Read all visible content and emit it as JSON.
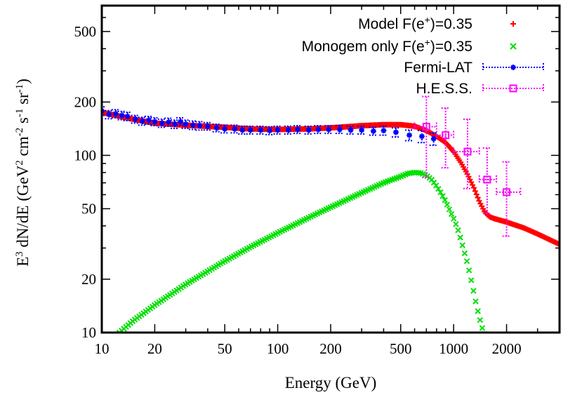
{
  "chart_data": {
    "type": "scatter",
    "title": "",
    "xlabel": "Energy (GeV)",
    "ylabel_parts": {
      "lead": "E",
      "lead_sup": "3",
      "mid": " dN/dE (GeV",
      "sup1": "2",
      "unit2": " cm",
      "sup2": "-2",
      "unit3": " s",
      "sup3": "-1",
      "unit4": " sr",
      "sup4": "-1"
    },
    "xscale": "log",
    "yscale": "log",
    "xlim": [
      10,
      4000
    ],
    "ylim": [
      10,
      700
    ],
    "x_ticks": [
      10,
      20,
      50,
      100,
      200,
      500,
      1000,
      2000
    ],
    "x_tick_labels": [
      "10",
      "20",
      "50",
      "100",
      "200",
      "500",
      "1000",
      "2000"
    ],
    "y_ticks": [
      10,
      20,
      50,
      100,
      200,
      500
    ],
    "y_tick_labels": [
      "10",
      "20",
      "50",
      "100",
      "200",
      "500"
    ],
    "grid": false,
    "legend_position": "top-right",
    "series": [
      {
        "name": "Model F(e+)=0.35",
        "legend_base": "Model F(e",
        "legend_sup": "+",
        "legend_tail": ")=0.35",
        "marker": "plus",
        "color": "#ff0000",
        "curve": [
          [
            10,
            175
          ],
          [
            15,
            160
          ],
          [
            20,
            152
          ],
          [
            30,
            148
          ],
          [
            50,
            144
          ],
          [
            70,
            141
          ],
          [
            100,
            140
          ],
          [
            150,
            141
          ],
          [
            200,
            143
          ],
          [
            300,
            147
          ],
          [
            400,
            149
          ],
          [
            500,
            149
          ],
          [
            600,
            146
          ],
          [
            700,
            138
          ],
          [
            800,
            128
          ],
          [
            900,
            118
          ],
          [
            1000,
            105
          ],
          [
            1100,
            91
          ],
          [
            1200,
            78
          ],
          [
            1300,
            66
          ],
          [
            1400,
            55
          ],
          [
            1500,
            48
          ],
          [
            1600,
            45
          ],
          [
            1700,
            44
          ],
          [
            2000,
            42
          ],
          [
            2500,
            39
          ],
          [
            3000,
            36
          ],
          [
            3500,
            33.5
          ],
          [
            4000,
            31.5
          ]
        ]
      },
      {
        "name": "Monogem only F(e+)=0.35",
        "legend_base": "Monogem only F(e",
        "legend_sup": "+",
        "legend_tail": ")=0.35",
        "marker": "cross",
        "color": "#00e000",
        "curve": [
          [
            12.6,
            10
          ],
          [
            15,
            11.6
          ],
          [
            20,
            14.3
          ],
          [
            30,
            18.7
          ],
          [
            50,
            25.3
          ],
          [
            70,
            30.4
          ],
          [
            100,
            36.5
          ],
          [
            150,
            44.5
          ],
          [
            200,
            51
          ],
          [
            300,
            61.5
          ],
          [
            400,
            70
          ],
          [
            500,
            76
          ],
          [
            550,
            79
          ],
          [
            600,
            80
          ],
          [
            650,
            79.5
          ],
          [
            700,
            77
          ],
          [
            750,
            73
          ],
          [
            800,
            67
          ],
          [
            850,
            61
          ],
          [
            900,
            55
          ],
          [
            950,
            49
          ],
          [
            1000,
            44
          ],
          [
            1050,
            39
          ],
          [
            1100,
            33.5
          ],
          [
            1150,
            28.5
          ],
          [
            1200,
            24.5
          ],
          [
            1250,
            20.5
          ],
          [
            1300,
            17
          ],
          [
            1350,
            14.2
          ],
          [
            1400,
            12.2
          ],
          [
            1450,
            10.7
          ],
          [
            1500,
            9.8
          ],
          [
            1550,
            9
          ],
          [
            1600,
            8
          ]
        ]
      },
      {
        "name": "Fermi-LAT",
        "marker": "asterisk",
        "color": "#0000ff",
        "points": [
          {
            "x": 10,
            "y": 178,
            "yerr": 10
          },
          {
            "x": 11,
            "y": 170,
            "yerr": 9
          },
          {
            "x": 12,
            "y": 172,
            "yerr": 9
          },
          {
            "x": 13,
            "y": 168,
            "yerr": 9
          },
          {
            "x": 14,
            "y": 166,
            "yerr": 9
          },
          {
            "x": 15.5,
            "y": 160,
            "yerr": 8
          },
          {
            "x": 17,
            "y": 156,
            "yerr": 8
          },
          {
            "x": 18.5,
            "y": 158,
            "yerr": 8
          },
          {
            "x": 20,
            "y": 155,
            "yerr": 8
          },
          {
            "x": 22,
            "y": 152,
            "yerr": 8
          },
          {
            "x": 24,
            "y": 154,
            "yerr": 8
          },
          {
            "x": 26,
            "y": 150,
            "yerr": 8
          },
          {
            "x": 28,
            "y": 155,
            "yerr": 8
          },
          {
            "x": 30,
            "y": 150,
            "yerr": 8
          },
          {
            "x": 33,
            "y": 148,
            "yerr": 8
          },
          {
            "x": 36,
            "y": 147,
            "yerr": 8
          },
          {
            "x": 40,
            "y": 146,
            "yerr": 7
          },
          {
            "x": 45,
            "y": 143,
            "yerr": 7
          },
          {
            "x": 50,
            "y": 141,
            "yerr": 7
          },
          {
            "x": 57,
            "y": 141,
            "yerr": 7
          },
          {
            "x": 63,
            "y": 139,
            "yerr": 7
          },
          {
            "x": 70,
            "y": 139,
            "yerr": 7
          },
          {
            "x": 80,
            "y": 139,
            "yerr": 7
          },
          {
            "x": 90,
            "y": 138,
            "yerr": 7
          },
          {
            "x": 100,
            "y": 139,
            "yerr": 7
          },
          {
            "x": 115,
            "y": 139,
            "yerr": 7
          },
          {
            "x": 130,
            "y": 140,
            "yerr": 7
          },
          {
            "x": 150,
            "y": 139,
            "yerr": 7
          },
          {
            "x": 170,
            "y": 140,
            "yerr": 7
          },
          {
            "x": 195,
            "y": 140,
            "yerr": 7
          },
          {
            "x": 225,
            "y": 140,
            "yerr": 7
          },
          {
            "x": 260,
            "y": 139,
            "yerr": 7
          },
          {
            "x": 300,
            "y": 139,
            "yerr": 7
          },
          {
            "x": 350,
            "y": 137,
            "yerr": 7
          },
          {
            "x": 400,
            "y": 138,
            "yerr": 8
          },
          {
            "x": 470,
            "y": 135,
            "yerr": 8
          },
          {
            "x": 560,
            "y": 130,
            "yerr": 9
          },
          {
            "x": 660,
            "y": 128,
            "yerr": 10
          },
          {
            "x": 770,
            "y": 124,
            "yerr": 10
          }
        ]
      },
      {
        "name": "H.E.S.S.",
        "marker": "open-square",
        "color": "#ff00ff",
        "points": [
          {
            "x": 700,
            "y": 145,
            "yerr_low": 75,
            "yerr_high": 215,
            "xerr_low": 600,
            "xerr_high": 800
          },
          {
            "x": 900,
            "y": 130,
            "yerr_low": 85,
            "yerr_high": 185,
            "xerr_low": 800,
            "xerr_high": 1000
          },
          {
            "x": 1200,
            "y": 105,
            "yerr_low": 65,
            "yerr_high": 160,
            "xerr_low": 1000,
            "xerr_high": 1400
          },
          {
            "x": 1550,
            "y": 73,
            "yerr_low": 47,
            "yerr_high": 110,
            "xerr_low": 1400,
            "xerr_high": 1750
          },
          {
            "x": 2000,
            "y": 62,
            "yerr_low": 35,
            "yerr_high": 92,
            "xerr_low": 1750,
            "xerr_high": 2400
          }
        ]
      }
    ]
  }
}
